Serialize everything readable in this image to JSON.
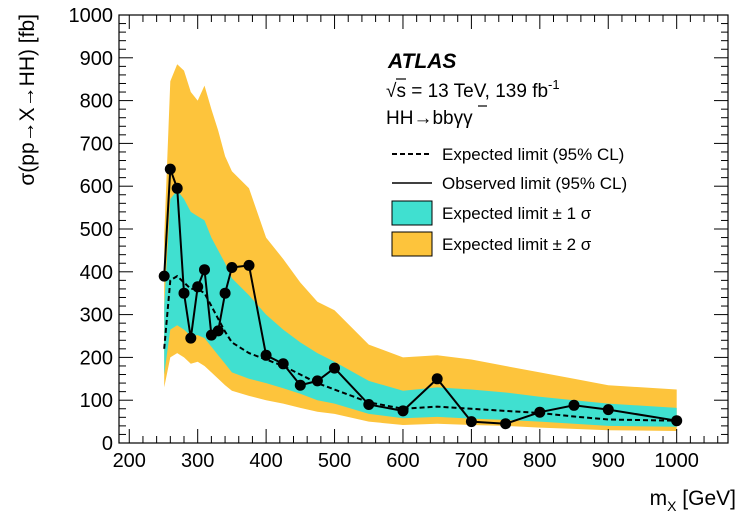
{
  "chart_data": {
    "type": "line",
    "xlabel_main": "m",
    "xlabel_sub": "X",
    "xlabel_unit": " [GeV]",
    "ylabel": "σ(pp→X→HH) [fb]",
    "xlim": [
      185,
      1075
    ],
    "ylim": [
      0,
      1000
    ],
    "xticks": [
      200,
      300,
      400,
      500,
      600,
      700,
      800,
      900,
      1000
    ],
    "yticks": [
      0,
      100,
      200,
      300,
      400,
      500,
      600,
      700,
      800,
      900,
      1000
    ],
    "annotation": {
      "experiment": "ATLAS",
      "sqrt": "√",
      "energy_pre": "s = 13 TeV, 139 fb",
      "energy_sup": "-1",
      "channel_pre": "HH→b",
      "channel_bbar": "b",
      "channel_post": "γγ"
    },
    "legend": {
      "position": "top-right",
      "entries": [
        "Expected limit (95% CL)",
        "Observed limit (95% CL)",
        "Expected limit ± 1 σ",
        "Expected limit ± 2 σ"
      ]
    },
    "colors": {
      "band1": "#40e0d0",
      "band2": "#fdc43c",
      "line": "#000000"
    },
    "x_band": [
      251,
      260,
      270,
      280,
      290,
      300,
      310,
      320,
      330,
      340,
      350,
      375,
      400,
      425,
      450,
      475,
      500,
      550,
      600,
      650,
      700,
      750,
      800,
      850,
      900,
      1000
    ],
    "expected": [
      220,
      380,
      390,
      375,
      360,
      360,
      350,
      320,
      290,
      260,
      235,
      210,
      195,
      180,
      160,
      140,
      125,
      95,
      80,
      85,
      80,
      75,
      70,
      62,
      55,
      52
    ],
    "plus1": [
      320,
      570,
      590,
      570,
      540,
      530,
      520,
      480,
      450,
      420,
      385,
      345,
      300,
      265,
      235,
      210,
      190,
      145,
      122,
      130,
      125,
      118,
      108,
      100,
      92,
      82
    ],
    "minus1": [
      160,
      265,
      275,
      265,
      250,
      252,
      245,
      225,
      205,
      185,
      165,
      150,
      140,
      128,
      115,
      100,
      92,
      68,
      58,
      61,
      57,
      54,
      50,
      45,
      40,
      38
    ],
    "plus2": [
      480,
      845,
      885,
      870,
      820,
      800,
      835,
      780,
      730,
      670,
      635,
      595,
      480,
      430,
      375,
      330,
      310,
      230,
      200,
      205,
      195,
      180,
      165,
      150,
      135,
      125
    ],
    "minus2": [
      130,
      200,
      210,
      200,
      185,
      190,
      180,
      165,
      150,
      135,
      122,
      110,
      100,
      92,
      82,
      73,
      68,
      50,
      42,
      45,
      42,
      40,
      36,
      33,
      30,
      28
    ],
    "observed_x": [
      251,
      260,
      270,
      280,
      290,
      300,
      310,
      320,
      330,
      340,
      350,
      375,
      400,
      425,
      450,
      475,
      500,
      550,
      600,
      650,
      700,
      750,
      800,
      850,
      900,
      1000
    ],
    "observed": [
      390,
      640,
      595,
      350,
      245,
      365,
      405,
      252,
      262,
      350,
      410,
      415,
      205,
      185,
      135,
      145,
      175,
      90,
      75,
      150,
      50,
      45,
      72,
      88,
      78,
      52
    ]
  }
}
